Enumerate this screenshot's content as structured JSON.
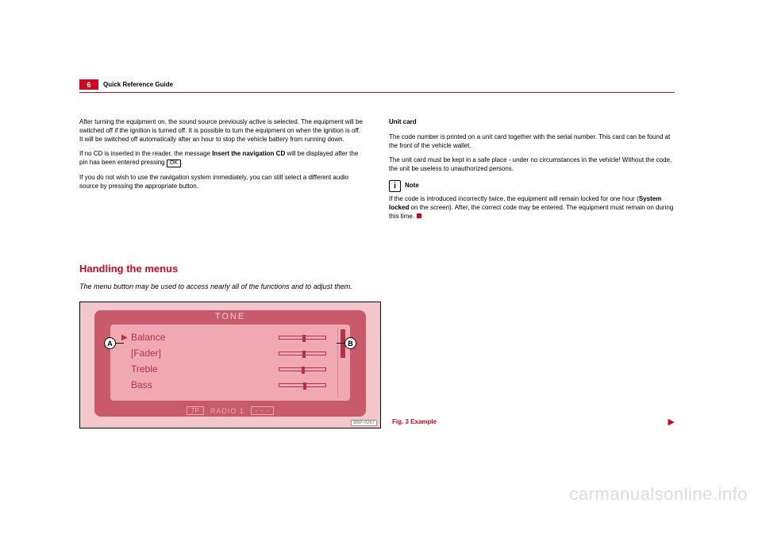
{
  "page_number": "6",
  "header_title": "Quick Reference Guide",
  "left_col": {
    "p1": "After turning the equipment on, the sound source previously active is selected. The equipment will be switched off if the ignition is turned off. It is possible to turn the equipment on when the ignition is off. It will be switched off automatically after an hour to stop the vehicle battery from running down.",
    "p2a": "If no CD is inserted in the reader, the message ",
    "p2b": "Insert the navigation CD",
    "p2c": " will be displayed after the pin has been entered pressing ",
    "ok": "OK",
    "p2d": ".",
    "p3": "If you do not wish to use the navigation system immediately, you can still select a different audio source by pressing the appropriate button."
  },
  "right_col": {
    "h": "Unit card",
    "p1": "The code number is printed on a unit card together with the serial number. This card can be found at the front of the vehicle wallet.",
    "p2": "The unit card must be kept in a safe place - under no circumstances in the vehicle! Without the code, the unit be useless to unauthorized persons.",
    "note_label": "Note",
    "p3a": "If the code is introduced incorrectly twice, the equipment will remain locked for one hour (",
    "p3b": "System locked",
    "p3c": " on the screen). After, the correct code may be entered. The equipment must remain on during this time."
  },
  "section": {
    "title": "Handling the menus",
    "sub": "The menu button may be used to access nearly all of the functions and to adjust them."
  },
  "figure": {
    "screen_title": "TONE",
    "items": [
      {
        "label": "Balance",
        "thumb_pct": 50,
        "selected": true
      },
      {
        "label": "[Fader]",
        "thumb_pct": 50,
        "selected": false
      },
      {
        "label": "Treble",
        "thumb_pct": 48,
        "selected": false
      },
      {
        "label": "Bass",
        "thumb_pct": 52,
        "selected": false
      }
    ],
    "footer_tp": "TP",
    "footer_center": "RADIO 1",
    "footer_dashes": "- - -",
    "callout_a": "A",
    "callout_b": "B",
    "corner_label": "B5P-0267",
    "caption": "Fig. 3  Example"
  },
  "watermark": "carmanualsonline.info",
  "colors": {
    "brand_red": "#cb0a22",
    "screen_dark": "#c85a6a",
    "screen_light": "#f0a8b3",
    "frame_bg": "#f4c7cd"
  }
}
